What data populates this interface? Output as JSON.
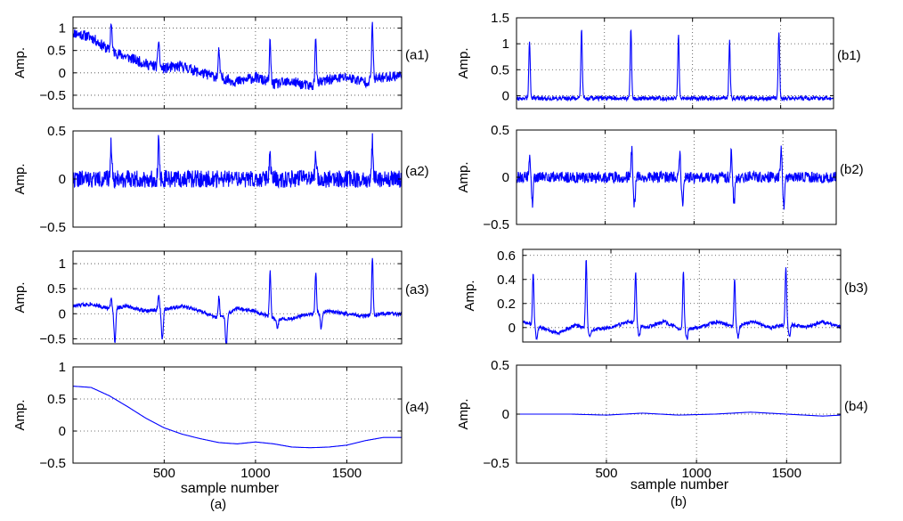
{
  "figure": {
    "xlabel": "sample number",
    "captions": [
      "(a)",
      "(b)"
    ]
  },
  "chart_data": [
    {
      "id": "a1",
      "type": "line",
      "tag": "(a1)",
      "ylabel": "Amp.",
      "xlim": [
        1,
        1800
      ],
      "ylim": [
        -0.8,
        1.25
      ],
      "xticks": [
        500,
        1000,
        1500
      ],
      "show_xtick_labels": false,
      "yticks": [
        -0.5,
        0,
        0.5,
        1
      ],
      "ytick_labels": [
        "−0.5",
        "0",
        "0.5",
        "1"
      ],
      "grid": true,
      "color": "#0000ff",
      "baseline": [
        [
          1,
          0.9
        ],
        [
          100,
          0.8
        ],
        [
          200,
          0.5
        ],
        [
          300,
          0.35
        ],
        [
          400,
          0.2
        ],
        [
          500,
          0.1
        ],
        [
          600,
          0.15
        ],
        [
          700,
          0.0
        ],
        [
          800,
          -0.1
        ],
        [
          900,
          -0.2
        ],
        [
          1000,
          -0.1
        ],
        [
          1100,
          -0.25
        ],
        [
          1200,
          -0.2
        ],
        [
          1300,
          -0.3
        ],
        [
          1400,
          -0.15
        ],
        [
          1500,
          -0.1
        ],
        [
          1600,
          -0.2
        ],
        [
          1700,
          -0.1
        ],
        [
          1800,
          -0.05
        ]
      ],
      "peaks": [
        [
          210,
          1.15
        ],
        [
          470,
          0.75
        ],
        [
          800,
          0.5
        ],
        [
          1080,
          0.7
        ],
        [
          1330,
          0.8
        ],
        [
          1640,
          1.15
        ]
      ],
      "noise": 0.12,
      "seed": 11
    },
    {
      "id": "a2",
      "type": "line",
      "tag": "(a2)",
      "ylabel": "Amp.",
      "xlim": [
        1,
        1800
      ],
      "ylim": [
        -0.5,
        0.5
      ],
      "xticks": [
        500,
        1000,
        1500
      ],
      "show_xtick_labels": false,
      "yticks": [
        -0.5,
        0,
        0.5
      ],
      "ytick_labels": [
        "−0.5",
        "0",
        "0.5"
      ],
      "grid": true,
      "color": "#0000ff",
      "baseline": [
        [
          1,
          0
        ],
        [
          1800,
          0
        ]
      ],
      "peaks": [
        [
          210,
          0.38
        ],
        [
          470,
          0.4
        ],
        [
          1080,
          0.25
        ],
        [
          1330,
          0.3
        ],
        [
          1640,
          0.4
        ]
      ],
      "noise": 0.09,
      "seed": 22
    },
    {
      "id": "a3",
      "type": "line",
      "tag": "(a3)",
      "ylabel": "Amp.",
      "xlim": [
        1,
        1800
      ],
      "ylim": [
        -0.6,
        1.25
      ],
      "xticks": [
        500,
        1000,
        1500
      ],
      "show_xtick_labels": false,
      "yticks": [
        -0.5,
        0,
        0.5,
        1
      ],
      "ytick_labels": [
        "−0.5",
        "0",
        "0.5",
        "1"
      ],
      "grid": true,
      "color": "#0000ff",
      "baseline": [
        [
          1,
          0.15
        ],
        [
          100,
          0.2
        ],
        [
          200,
          0.1
        ],
        [
          300,
          0.15
        ],
        [
          400,
          0.05
        ],
        [
          500,
          0.1
        ],
        [
          600,
          0.15
        ],
        [
          700,
          0.05
        ],
        [
          800,
          -0.1
        ],
        [
          900,
          0.1
        ],
        [
          1000,
          0.05
        ],
        [
          1100,
          -0.1
        ],
        [
          1200,
          -0.1
        ],
        [
          1300,
          0.0
        ],
        [
          1400,
          0.05
        ],
        [
          1500,
          0.0
        ],
        [
          1600,
          -0.05
        ],
        [
          1700,
          0.0
        ],
        [
          1800,
          0.0
        ]
      ],
      "peaks": [
        [
          210,
          0.3
        ],
        [
          470,
          0.35
        ],
        [
          800,
          0.35
        ],
        [
          1080,
          0.85
        ],
        [
          1330,
          0.8
        ],
        [
          1640,
          1.12
        ]
      ],
      "dips": [
        [
          230,
          -0.55
        ],
        [
          490,
          -0.5
        ],
        [
          840,
          -0.65
        ],
        [
          1120,
          -0.3
        ],
        [
          1360,
          -0.3
        ]
      ],
      "noise": 0.04,
      "seed": 33
    },
    {
      "id": "a4",
      "type": "line",
      "tag": "(a4)",
      "ylabel": "Amp.",
      "xlim": [
        1,
        1800
      ],
      "ylim": [
        -0.5,
        1
      ],
      "xticks": [
        500,
        1000,
        1500
      ],
      "show_xtick_labels": true,
      "yticks": [
        -0.5,
        0,
        0.5,
        1
      ],
      "ytick_labels": [
        "−0.5",
        "0",
        "0.5",
        "1"
      ],
      "grid": true,
      "color": "#0000ff",
      "baseline": [
        [
          1,
          0.7
        ],
        [
          100,
          0.68
        ],
        [
          200,
          0.55
        ],
        [
          300,
          0.38
        ],
        [
          400,
          0.2
        ],
        [
          500,
          0.05
        ],
        [
          600,
          -0.05
        ],
        [
          700,
          -0.12
        ],
        [
          800,
          -0.18
        ],
        [
          900,
          -0.2
        ],
        [
          1000,
          -0.17
        ],
        [
          1100,
          -0.2
        ],
        [
          1200,
          -0.25
        ],
        [
          1300,
          -0.26
        ],
        [
          1400,
          -0.25
        ],
        [
          1500,
          -0.22
        ],
        [
          1600,
          -0.15
        ],
        [
          1700,
          -0.1
        ],
        [
          1800,
          -0.1
        ]
      ],
      "peaks": [],
      "noise": 0,
      "seed": 44
    },
    {
      "id": "b1",
      "type": "line",
      "tag": "(b1)",
      "ylabel": "Amp.",
      "xlim": [
        1,
        1800
      ],
      "ylim": [
        -0.25,
        1.5
      ],
      "xticks": [
        500,
        1000,
        1500
      ],
      "show_xtick_labels": false,
      "yticks": [
        0,
        0.5,
        1,
        1.5
      ],
      "ytick_labels": [
        "0",
        "0.5",
        "1",
        "1.5"
      ],
      "grid": true,
      "color": "#0000ff",
      "baseline": [
        [
          1,
          -0.05
        ],
        [
          1800,
          -0.05
        ]
      ],
      "peaks": [
        [
          75,
          1.05
        ],
        [
          370,
          1.25
        ],
        [
          650,
          1.3
        ],
        [
          920,
          1.2
        ],
        [
          1210,
          1.05
        ],
        [
          1490,
          1.25
        ]
      ],
      "noise": 0.04,
      "seed": 55
    },
    {
      "id": "b2",
      "type": "line",
      "tag": "(b2)",
      "ylabel": "Amp.",
      "xlim": [
        1,
        1800
      ],
      "ylim": [
        -0.5,
        0.5
      ],
      "xticks": [
        500,
        1000,
        1500
      ],
      "show_xtick_labels": false,
      "yticks": [
        -0.5,
        0,
        0.5
      ],
      "ytick_labels": [
        "−0.5",
        "0",
        "0.5"
      ],
      "grid": true,
      "color": "#0000ff",
      "baseline": [
        [
          1,
          0
        ],
        [
          1800,
          0
        ]
      ],
      "peaks": [
        [
          75,
          0.25
        ],
        [
          650,
          0.3
        ],
        [
          920,
          0.28
        ],
        [
          1210,
          0.28
        ],
        [
          1490,
          0.32
        ]
      ],
      "dips": [
        [
          90,
          -0.28
        ],
        [
          665,
          -0.3
        ],
        [
          935,
          -0.28
        ],
        [
          1225,
          -0.28
        ],
        [
          1505,
          -0.3
        ]
      ],
      "noise": 0.06,
      "seed": 66
    },
    {
      "id": "b3",
      "type": "line",
      "tag": "(b3)",
      "ylabel": "Amp.",
      "xlim": [
        1,
        1800
      ],
      "ylim": [
        -0.12,
        0.65
      ],
      "xticks": [
        500,
        1000,
        1500
      ],
      "show_xtick_labels": false,
      "yticks": [
        0,
        0.2,
        0.4,
        0.6
      ],
      "ytick_labels": [
        "0",
        "0.2",
        "0.4",
        "0.6"
      ],
      "grid": true,
      "color": "#0000ff",
      "baseline": [
        [
          1,
          0.05
        ],
        [
          100,
          0.0
        ],
        [
          200,
          -0.05
        ],
        [
          300,
          0.02
        ],
        [
          400,
          -0.02
        ],
        [
          500,
          0.0
        ],
        [
          600,
          0.05
        ],
        [
          700,
          0.0
        ],
        [
          800,
          0.05
        ],
        [
          900,
          -0.02
        ],
        [
          1000,
          0.0
        ],
        [
          1100,
          0.05
        ],
        [
          1200,
          0.0
        ],
        [
          1300,
          0.05
        ],
        [
          1400,
          0.0
        ],
        [
          1500,
          0.03
        ],
        [
          1600,
          0.0
        ],
        [
          1700,
          0.05
        ],
        [
          1800,
          0.0
        ]
      ],
      "peaks": [
        [
          60,
          0.45
        ],
        [
          360,
          0.57
        ],
        [
          640,
          0.47
        ],
        [
          910,
          0.47
        ],
        [
          1200,
          0.4
        ],
        [
          1490,
          0.51
        ]
      ],
      "dips": [
        [
          80,
          -0.1
        ],
        [
          380,
          -0.08
        ],
        [
          660,
          -0.08
        ],
        [
          930,
          -0.1
        ],
        [
          1220,
          -0.08
        ],
        [
          1510,
          -0.08
        ]
      ],
      "noise": 0.015,
      "seed": 77
    },
    {
      "id": "b4",
      "type": "line",
      "tag": "(b4)",
      "ylabel": "Amp.",
      "xlim": [
        1,
        1800
      ],
      "ylim": [
        -0.5,
        0.5
      ],
      "xticks": [
        500,
        1000,
        1500
      ],
      "show_xtick_labels": true,
      "yticks": [
        -0.5,
        0,
        0.5
      ],
      "ytick_labels": [
        "−0.5",
        "0",
        "0.5"
      ],
      "grid": true,
      "color": "#0000ff",
      "baseline": [
        [
          1,
          0.0
        ],
        [
          300,
          0.0
        ],
        [
          500,
          -0.01
        ],
        [
          700,
          0.01
        ],
        [
          900,
          -0.01
        ],
        [
          1100,
          0.0
        ],
        [
          1300,
          0.02
        ],
        [
          1500,
          0.0
        ],
        [
          1700,
          -0.02
        ],
        [
          1800,
          -0.01
        ]
      ],
      "peaks": [],
      "noise": 0,
      "seed": 88
    }
  ]
}
